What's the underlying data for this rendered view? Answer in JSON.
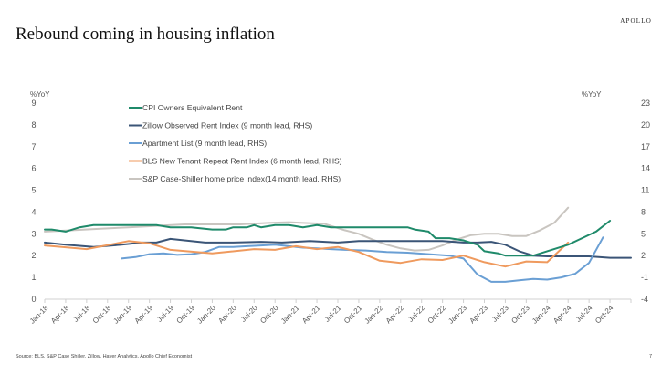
{
  "header": {
    "brand": "APOLLO",
    "title": "Rebound coming in housing inflation"
  },
  "footer": {
    "source": "Source: BLS, S&P Case Shiller, Zillow, Haver Analytics, Apollo Chief Economist",
    "page_number": "7"
  },
  "chart_data": {
    "type": "line",
    "title": "Rebound coming in housing inflation",
    "xlabel": "",
    "ylabel_left": "%YoY",
    "ylabel_right": "%YoY",
    "ylim_left": [
      0,
      9
    ],
    "ylim_right": [
      -4,
      23
    ],
    "yticks_left": [
      "0",
      "1",
      "2",
      "3",
      "4",
      "5",
      "6",
      "7",
      "8",
      "9"
    ],
    "yticks_right": [
      "-4",
      "-1",
      "2",
      "5",
      "8",
      "11",
      "14",
      "17",
      "20",
      "23"
    ],
    "x_ticks": [
      "Jan-18",
      "Apr-18",
      "Jul-18",
      "Oct-18",
      "Jan-19",
      "Apr-19",
      "Jul-19",
      "Oct-19",
      "Jan-20",
      "Apr-20",
      "Jul-20",
      "Oct-20",
      "Jan-21",
      "Apr-21",
      "Jul-21",
      "Oct-21",
      "Jan-22",
      "Apr-22",
      "Jul-22",
      "Oct-22",
      "Jan-23",
      "Apr-23",
      "Jul-23",
      "Oct-23",
      "Jan-24",
      "Apr-24",
      "Jul-24",
      "Oct-24"
    ],
    "x_start": "Jan-18",
    "x_unit": "months since Jan-18",
    "x_range": [
      0,
      84
    ],
    "grid": false,
    "legend_position": "top-left",
    "series": [
      {
        "name": "CPI Owners Equivalent Rent",
        "axis": "left",
        "color": "#1f8a6a",
        "points": [
          [
            0,
            3.2
          ],
          [
            1,
            3.2
          ],
          [
            3,
            3.1
          ],
          [
            5,
            3.3
          ],
          [
            7,
            3.4
          ],
          [
            10,
            3.4
          ],
          [
            13,
            3.4
          ],
          [
            16,
            3.4
          ],
          [
            18,
            3.3
          ],
          [
            21,
            3.3
          ],
          [
            24,
            3.2
          ],
          [
            26,
            3.2
          ],
          [
            27,
            3.3
          ],
          [
            29,
            3.3
          ],
          [
            30,
            3.4
          ],
          [
            31,
            3.3
          ],
          [
            33,
            3.4
          ],
          [
            35,
            3.4
          ],
          [
            37,
            3.3
          ],
          [
            39,
            3.4
          ],
          [
            41,
            3.3
          ],
          [
            44,
            3.3
          ],
          [
            47,
            3.3
          ],
          [
            50,
            3.3
          ],
          [
            52,
            3.3
          ],
          [
            53,
            3.2
          ],
          [
            55,
            3.1
          ],
          [
            56,
            2.8
          ],
          [
            58,
            2.8
          ],
          [
            60,
            2.7
          ],
          [
            62,
            2.5
          ],
          [
            63,
            2.2
          ],
          [
            65,
            2.1
          ],
          [
            66,
            2.0
          ],
          [
            68,
            2.0
          ],
          [
            70,
            2.0
          ],
          [
            71,
            2.1
          ],
          [
            73,
            2.3
          ],
          [
            75,
            2.5
          ],
          [
            77,
            2.8
          ],
          [
            79,
            3.1
          ],
          [
            81,
            3.6
          ]
        ]
      },
      {
        "name": "Zillow Observed Rent Index (9 month lead, RHS)",
        "axis": "right",
        "color": "#3b5577",
        "points": [
          [
            0,
            3.8
          ],
          [
            3,
            3.5
          ],
          [
            7,
            3.2
          ],
          [
            11,
            3.5
          ],
          [
            14,
            3.8
          ],
          [
            16,
            3.8
          ],
          [
            18,
            4.3
          ],
          [
            20,
            4.1
          ],
          [
            23,
            3.8
          ],
          [
            27,
            3.8
          ],
          [
            31,
            3.9
          ],
          [
            34,
            3.8
          ],
          [
            38,
            4.0
          ],
          [
            42,
            3.8
          ],
          [
            45,
            4.0
          ],
          [
            49,
            4.0
          ],
          [
            52,
            4.0
          ],
          [
            54,
            4.0
          ],
          [
            57,
            4.0
          ],
          [
            60,
            3.8
          ],
          [
            62,
            3.8
          ],
          [
            64,
            3.9
          ],
          [
            66,
            3.5
          ],
          [
            68,
            2.6
          ],
          [
            70,
            2.0
          ],
          [
            72,
            1.9
          ],
          [
            75,
            1.9
          ],
          [
            78,
            1.9
          ],
          [
            81,
            1.7
          ],
          [
            84,
            1.7
          ]
        ]
      },
      {
        "name": "Apartment List (9 month lead, RHS)",
        "axis": "right",
        "color": "#6a9fd4",
        "points": [
          [
            11,
            1.6
          ],
          [
            13,
            1.8
          ],
          [
            15,
            2.2
          ],
          [
            17,
            2.3
          ],
          [
            19,
            2.1
          ],
          [
            21,
            2.2
          ],
          [
            23,
            2.5
          ],
          [
            25,
            3.2
          ],
          [
            27,
            3.2
          ],
          [
            29,
            3.3
          ],
          [
            31,
            3.4
          ],
          [
            33,
            3.5
          ],
          [
            35,
            3.3
          ],
          [
            37,
            3.1
          ],
          [
            39,
            3.0
          ],
          [
            41,
            2.9
          ],
          [
            43,
            2.8
          ],
          [
            46,
            2.7
          ],
          [
            49,
            2.5
          ],
          [
            52,
            2.4
          ],
          [
            55,
            2.2
          ],
          [
            58,
            2.0
          ],
          [
            60,
            1.6
          ],
          [
            62,
            -0.6
          ],
          [
            64,
            -1.6
          ],
          [
            66,
            -1.6
          ],
          [
            68,
            -1.4
          ],
          [
            70,
            -1.2
          ],
          [
            72,
            -1.3
          ],
          [
            74,
            -1.0
          ],
          [
            76,
            -0.5
          ],
          [
            78,
            1.0
          ],
          [
            80,
            4.5
          ]
        ]
      },
      {
        "name": "BLS New Tenant Repeat Rent Index (6 month lead, RHS)",
        "axis": "right",
        "color": "#ef9a5e",
        "points": [
          [
            0,
            3.4
          ],
          [
            6,
            2.9
          ],
          [
            12,
            4.0
          ],
          [
            15,
            3.7
          ],
          [
            18,
            2.8
          ],
          [
            24,
            2.3
          ],
          [
            30,
            2.9
          ],
          [
            33,
            2.8
          ],
          [
            36,
            3.3
          ],
          [
            39,
            2.9
          ],
          [
            42,
            3.2
          ],
          [
            45,
            2.5
          ],
          [
            48,
            1.3
          ],
          [
            51,
            1.0
          ],
          [
            54,
            1.5
          ],
          [
            57,
            1.4
          ],
          [
            60,
            2.0
          ],
          [
            63,
            1.1
          ],
          [
            66,
            0.5
          ],
          [
            69,
            1.2
          ],
          [
            72,
            1.1
          ],
          [
            75,
            3.8
          ]
        ]
      },
      {
        "name": "S&P Case-Shiller home price index(14 month lead, RHS)",
        "axis": "right",
        "color": "#c9c5c0",
        "points": [
          [
            0,
            5.3
          ],
          [
            4,
            5.5
          ],
          [
            8,
            5.7
          ],
          [
            12,
            5.9
          ],
          [
            16,
            6.1
          ],
          [
            20,
            6.3
          ],
          [
            24,
            6.3
          ],
          [
            28,
            6.3
          ],
          [
            32,
            6.5
          ],
          [
            35,
            6.6
          ],
          [
            37,
            6.5
          ],
          [
            40,
            6.4
          ],
          [
            43,
            5.5
          ],
          [
            45,
            5.0
          ],
          [
            47,
            4.2
          ],
          [
            49,
            3.5
          ],
          [
            51,
            3.0
          ],
          [
            53,
            2.7
          ],
          [
            55,
            2.8
          ],
          [
            57,
            3.4
          ],
          [
            59,
            4.2
          ],
          [
            61,
            4.8
          ],
          [
            63,
            5.0
          ],
          [
            65,
            5.0
          ],
          [
            67,
            4.7
          ],
          [
            69,
            4.7
          ],
          [
            71,
            5.5
          ],
          [
            73,
            6.5
          ],
          [
            75,
            8.6
          ]
        ]
      }
    ]
  }
}
